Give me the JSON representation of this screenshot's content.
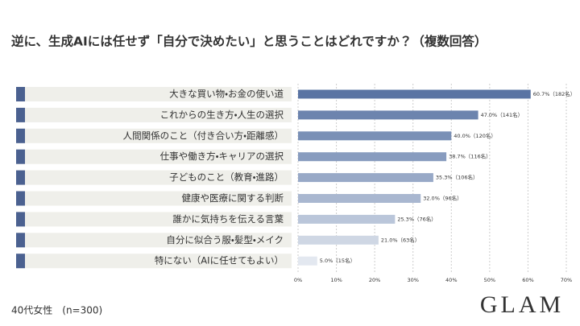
{
  "chart_data": {
    "type": "bar",
    "title": "逆に、生成AIには任せず「自分で決めたい」と思うことはどれですか？（複数回答）",
    "categories": [
      "大きな買い物・お金の使い道",
      "これからの生き方・人生の選択",
      "人間関係のこと（付き合い方・距離感）",
      "仕事や働き方・キャリアの選択",
      "子どものこと（教育・進路）",
      "健康や医療に関する判断",
      "誰かに気持ちを伝える言葉",
      "自分に似合う服・髪型・メイク",
      "特にない（AIに任せてもよい）"
    ],
    "values": [
      60.7,
      47.0,
      40.0,
      38.7,
      35.3,
      32.0,
      25.3,
      21.0,
      5.0
    ],
    "value_labels": [
      "60.7%（182名）",
      "47.0%（141名）",
      "40.0%（120名）",
      "38.7%（116名）",
      "35.3%（106名）",
      "32.0%（96名）",
      "25.3%（76名）",
      "21.0%（63名）",
      "5.0%（15名）"
    ],
    "colors": [
      "#5a74a3",
      "#6c84ae",
      "#7a90b6",
      "#889cbf",
      "#98a9c7",
      "#a9b7d0",
      "#bac6da",
      "#cfd7e4",
      "#e3e8f0"
    ],
    "xlim": [
      0,
      70
    ],
    "xticks": [
      {
        "value": 0,
        "label": "0%"
      },
      {
        "value": 10,
        "label": "10%"
      },
      {
        "value": 20,
        "label": "20%"
      },
      {
        "value": 30,
        "label": "30%"
      },
      {
        "value": 40,
        "label": "40%"
      },
      {
        "value": 50,
        "label": "50%"
      },
      {
        "value": 60,
        "label": "60%"
      },
      {
        "value": 70,
        "label": "70%"
      }
    ],
    "grid": true,
    "note": "40代女性　(n=300)",
    "brand": "GLAM"
  }
}
